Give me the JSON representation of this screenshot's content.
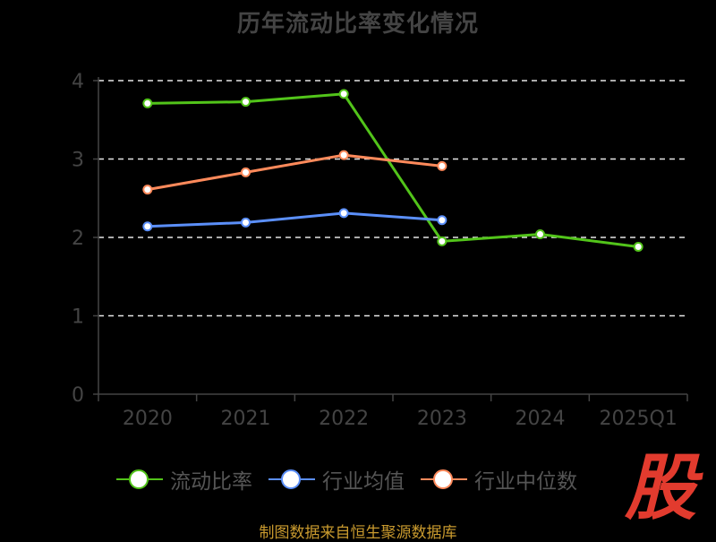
{
  "title": "历年流动比率变化情况",
  "footer": "制图数据来自恒生聚源数据库",
  "logo_text": "股",
  "chart_data": {
    "type": "line",
    "title": "历年流动比率变化情况",
    "categories": [
      "2020",
      "2021",
      "2022",
      "2023",
      "2024",
      "2025Q1"
    ],
    "ylim": [
      0,
      4
    ],
    "yticks": [
      0,
      1,
      2,
      3,
      4
    ],
    "grid": true,
    "legend_position": "bottom",
    "series": [
      {
        "name": "流动比率",
        "color": "#52c41a",
        "values": [
          3.71,
          3.73,
          3.83,
          1.95,
          2.04,
          1.88
        ]
      },
      {
        "name": "行业均值",
        "color": "#5b8ff9",
        "values": [
          2.14,
          2.19,
          2.31,
          2.22,
          null,
          null
        ]
      },
      {
        "name": "行业中位数",
        "color": "#ff8a5b",
        "values": [
          2.61,
          2.83,
          3.05,
          2.91,
          null,
          null
        ]
      }
    ]
  }
}
